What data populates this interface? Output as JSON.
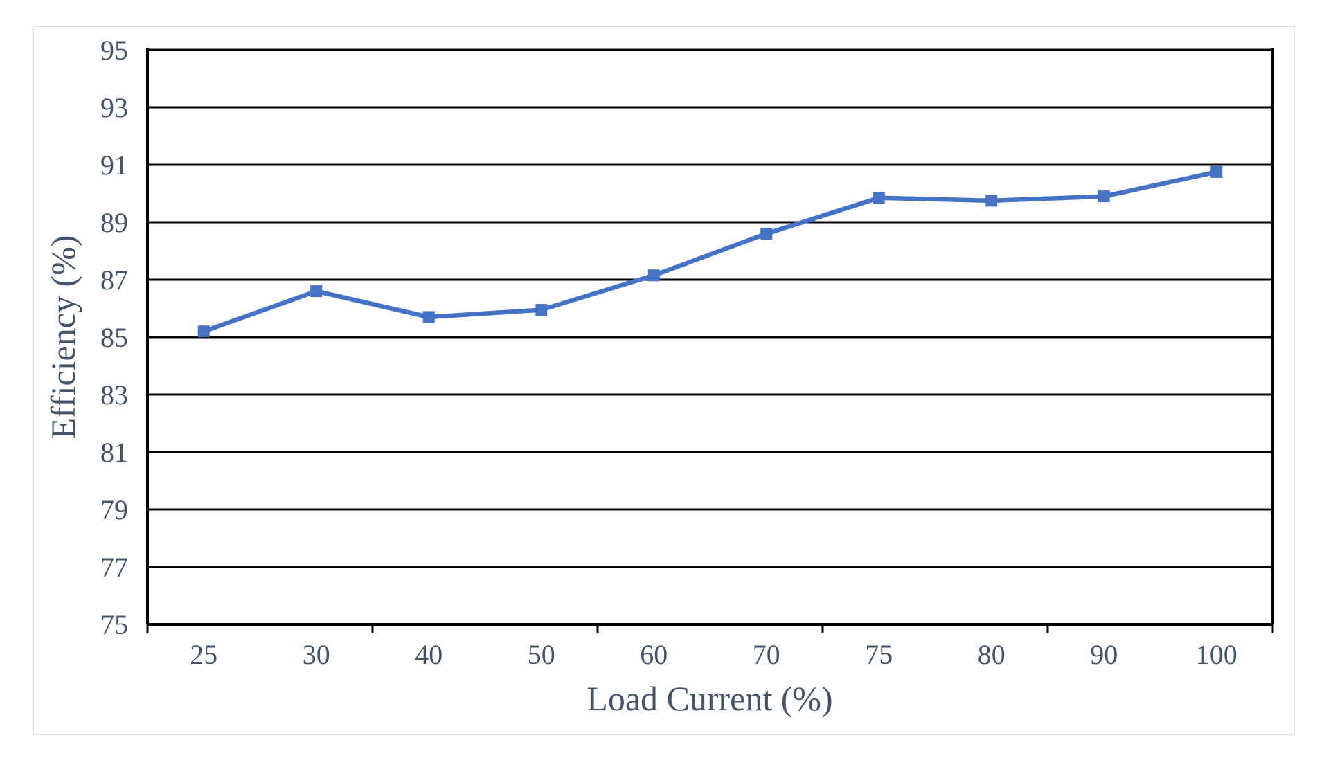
{
  "chart_data": {
    "type": "line",
    "title": "",
    "categories": [
      "25",
      "30",
      "40",
      "50",
      "60",
      "70",
      "75",
      "80",
      "90",
      "100"
    ],
    "series": [
      {
        "marker": "square",
        "color": "#4472C4",
        "values": [
          85.2,
          86.6,
          85.7,
          85.95,
          87.15,
          88.6,
          89.85,
          89.75,
          89.9,
          90.75
        ]
      }
    ],
    "xlabel": "Load Current (%)",
    "ylabel": "Efficiency (%)",
    "ylim": [
      75,
      95
    ],
    "ytick_step": 2,
    "yticks": [
      75,
      77,
      79,
      81,
      83,
      85,
      87,
      89,
      91,
      93,
      95
    ],
    "grid": "horizontal-major",
    "gridline_color": "#000000",
    "axis_color": "#000000",
    "text_color": "#44546A",
    "legend": "none",
    "x_tick_mark_interval": 2
  },
  "page": {
    "background_color": "#ffffff",
    "frame_border_color": "#dde2e9"
  }
}
